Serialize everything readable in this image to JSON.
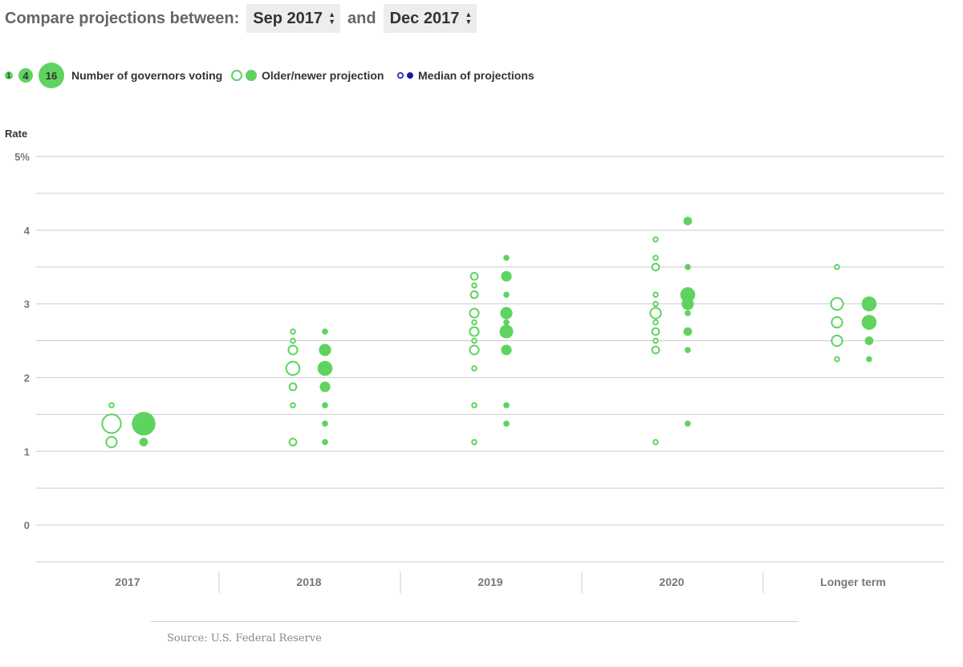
{
  "header": {
    "compare_label": "Compare projections between:",
    "from_select": "Sep 2017",
    "and_label": "and",
    "to_select": "Dec 2017"
  },
  "legend": {
    "size_counts": [
      "1",
      "4",
      "16"
    ],
    "size_label": "Number of governors voting",
    "projection_label": "Older/newer projection",
    "median_label": "Median of projections"
  },
  "colors": {
    "projection": "#5fd35f",
    "median": "#1a1aa8",
    "grid": "#cccccc",
    "axis_text": "#777777"
  },
  "source": "Source: U.S. Federal Reserve",
  "chart_data": {
    "type": "scatter",
    "ylabel": "Rate",
    "ylim": [
      -0.5,
      5
    ],
    "yticks": [
      0,
      1,
      2,
      3,
      4,
      5
    ],
    "ytick_labels": [
      "0",
      "1",
      "2",
      "3",
      "4",
      "5%"
    ],
    "grid": true,
    "categories": [
      "2017",
      "2018",
      "2019",
      "2020",
      "Longer term"
    ],
    "series": [
      {
        "name": "Older projection",
        "style": "hollow",
        "points": [
          {
            "x": "2017",
            "y": 1.625,
            "count": 1
          },
          {
            "x": "2017",
            "y": 1.375,
            "count": 11
          },
          {
            "x": "2017",
            "y": 1.125,
            "count": 4
          },
          {
            "x": "2018",
            "y": 2.625,
            "count": 1
          },
          {
            "x": "2018",
            "y": 2.5,
            "count": 1
          },
          {
            "x": "2018",
            "y": 2.375,
            "count": 3
          },
          {
            "x": "2018",
            "y": 2.125,
            "count": 6
          },
          {
            "x": "2018",
            "y": 1.875,
            "count": 2
          },
          {
            "x": "2018",
            "y": 1.625,
            "count": 1
          },
          {
            "x": "2018",
            "y": 1.125,
            "count": 2
          },
          {
            "x": "2019",
            "y": 3.375,
            "count": 2
          },
          {
            "x": "2019",
            "y": 3.25,
            "count": 1
          },
          {
            "x": "2019",
            "y": 3.125,
            "count": 2
          },
          {
            "x": "2019",
            "y": 2.875,
            "count": 3
          },
          {
            "x": "2019",
            "y": 2.75,
            "count": 1
          },
          {
            "x": "2019",
            "y": 2.625,
            "count": 3
          },
          {
            "x": "2019",
            "y": 2.5,
            "count": 1
          },
          {
            "x": "2019",
            "y": 2.375,
            "count": 3
          },
          {
            "x": "2019",
            "y": 2.125,
            "count": 1
          },
          {
            "x": "2019",
            "y": 1.625,
            "count": 1
          },
          {
            "x": "2019",
            "y": 1.125,
            "count": 1
          },
          {
            "x": "2020",
            "y": 3.875,
            "count": 1
          },
          {
            "x": "2020",
            "y": 3.625,
            "count": 1
          },
          {
            "x": "2020",
            "y": 3.5,
            "count": 2
          },
          {
            "x": "2020",
            "y": 3.125,
            "count": 1
          },
          {
            "x": "2020",
            "y": 3.0,
            "count": 1
          },
          {
            "x": "2020",
            "y": 2.875,
            "count": 4
          },
          {
            "x": "2020",
            "y": 2.75,
            "count": 1
          },
          {
            "x": "2020",
            "y": 2.625,
            "count": 2
          },
          {
            "x": "2020",
            "y": 2.5,
            "count": 1
          },
          {
            "x": "2020",
            "y": 2.375,
            "count": 2
          },
          {
            "x": "2020",
            "y": 1.125,
            "count": 1
          },
          {
            "x": "Longer term",
            "y": 3.5,
            "count": 1
          },
          {
            "x": "Longer term",
            "y": 3.0,
            "count": 5
          },
          {
            "x": "Longer term",
            "y": 2.75,
            "count": 4
          },
          {
            "x": "Longer term",
            "y": 2.5,
            "count": 4
          },
          {
            "x": "Longer term",
            "y": 2.25,
            "count": 1
          }
        ]
      },
      {
        "name": "Newer projection",
        "style": "filled",
        "points": [
          {
            "x": "2017",
            "y": 1.375,
            "count": 15
          },
          {
            "x": "2017",
            "y": 1.125,
            "count": 2
          },
          {
            "x": "2018",
            "y": 2.625,
            "count": 1
          },
          {
            "x": "2018",
            "y": 2.375,
            "count": 4
          },
          {
            "x": "2018",
            "y": 2.125,
            "count": 6
          },
          {
            "x": "2018",
            "y": 1.875,
            "count": 3
          },
          {
            "x": "2018",
            "y": 1.625,
            "count": 1
          },
          {
            "x": "2018",
            "y": 1.375,
            "count": 1
          },
          {
            "x": "2018",
            "y": 1.125,
            "count": 1
          },
          {
            "x": "2019",
            "y": 3.625,
            "count": 1
          },
          {
            "x": "2019",
            "y": 3.375,
            "count": 3
          },
          {
            "x": "2019",
            "y": 3.125,
            "count": 1
          },
          {
            "x": "2019",
            "y": 2.875,
            "count": 4
          },
          {
            "x": "2019",
            "y": 2.75,
            "count": 1
          },
          {
            "x": "2019",
            "y": 2.625,
            "count": 5
          },
          {
            "x": "2019",
            "y": 2.375,
            "count": 3
          },
          {
            "x": "2019",
            "y": 1.625,
            "count": 1
          },
          {
            "x": "2019",
            "y": 1.375,
            "count": 1
          },
          {
            "x": "2020",
            "y": 4.125,
            "count": 2
          },
          {
            "x": "2020",
            "y": 3.5,
            "count": 1
          },
          {
            "x": "2020",
            "y": 3.125,
            "count": 6
          },
          {
            "x": "2020",
            "y": 3.0,
            "count": 4
          },
          {
            "x": "2020",
            "y": 2.875,
            "count": 1
          },
          {
            "x": "2020",
            "y": 2.625,
            "count": 2
          },
          {
            "x": "2020",
            "y": 2.375,
            "count": 1
          },
          {
            "x": "2020",
            "y": 1.375,
            "count": 1
          },
          {
            "x": "Longer term",
            "y": 3.0,
            "count": 6
          },
          {
            "x": "Longer term",
            "y": 2.75,
            "count": 6
          },
          {
            "x": "Longer term",
            "y": 2.5,
            "count": 2
          },
          {
            "x": "Longer term",
            "y": 2.25,
            "count": 1
          }
        ]
      }
    ]
  }
}
